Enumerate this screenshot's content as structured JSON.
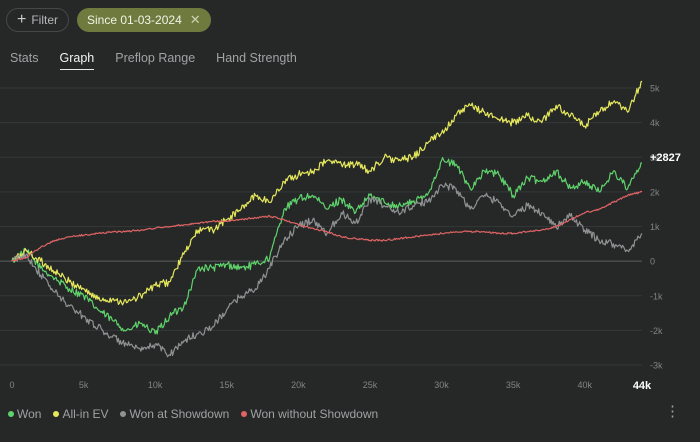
{
  "toolbar": {
    "filter_label": "Filter",
    "date_chip_label": "Since 01-03-2024"
  },
  "tabs": [
    {
      "label": "Stats",
      "active": false
    },
    {
      "label": "Graph",
      "active": true
    },
    {
      "label": "Preflop Range",
      "active": false
    },
    {
      "label": "Hand Strength",
      "active": false
    }
  ],
  "chart_data": {
    "type": "line",
    "x_range": [
      0,
      44000
    ],
    "y_range": [
      -3000,
      5000
    ],
    "x_ticks": [
      "0",
      "5k",
      "10k",
      "15k",
      "20k",
      "25k",
      "30k",
      "35k",
      "40k"
    ],
    "x_end_label": "44k",
    "y_ticks": [
      "5k",
      "4k",
      "3k",
      "2k",
      "1k",
      "0",
      "-1k",
      "-2k",
      "-3k"
    ],
    "end_value_label": "+2827",
    "series": [
      {
        "name": "Won",
        "color": "#5fd36b",
        "x": [
          0,
          1000,
          2000,
          3000,
          4000,
          5000,
          6000,
          7000,
          8000,
          9000,
          10000,
          11000,
          12000,
          13000,
          14000,
          15000,
          16000,
          17000,
          18000,
          19000,
          20000,
          21000,
          22000,
          23000,
          24000,
          25000,
          26000,
          27000,
          28000,
          29000,
          30000,
          31000,
          32000,
          33000,
          34000,
          35000,
          36000,
          37000,
          38000,
          39000,
          40000,
          41000,
          42000,
          43000,
          44000
        ],
        "y": [
          0,
          300,
          -200,
          -500,
          -800,
          -1000,
          -1400,
          -1700,
          -2000,
          -1800,
          -2100,
          -1600,
          -1300,
          -200,
          -200,
          -100,
          -200,
          -100,
          100,
          1500,
          1800,
          1900,
          1500,
          1800,
          1400,
          1900,
          1700,
          1600,
          1700,
          1900,
          2900,
          2800,
          2100,
          2600,
          2500,
          1900,
          2400,
          2300,
          2600,
          2100,
          2300,
          2000,
          2600,
          2100,
          2827
        ]
      },
      {
        "name": "All-in EV",
        "color": "#e6e85c",
        "x": [
          0,
          1000,
          2000,
          3000,
          4000,
          5000,
          6000,
          7000,
          8000,
          9000,
          10000,
          11000,
          12000,
          13000,
          14000,
          15000,
          16000,
          17000,
          18000,
          19000,
          20000,
          21000,
          22000,
          23000,
          24000,
          25000,
          26000,
          27000,
          28000,
          29000,
          30000,
          31000,
          32000,
          33000,
          34000,
          35000,
          36000,
          37000,
          38000,
          39000,
          40000,
          41000,
          42000,
          43000,
          44000
        ],
        "y": [
          0,
          300,
          0,
          -300,
          -600,
          -800,
          -1100,
          -1100,
          -1200,
          -1000,
          -700,
          -600,
          200,
          900,
          900,
          1200,
          1500,
          1900,
          1700,
          2300,
          2500,
          2600,
          2900,
          2800,
          2800,
          2600,
          3000,
          2900,
          3000,
          3400,
          3700,
          4200,
          4500,
          4300,
          4100,
          4000,
          4200,
          4000,
          4500,
          4200,
          3900,
          4300,
          4600,
          4300,
          5200
        ]
      },
      {
        "name": "Won at Showdown",
        "color": "#8e9292",
        "x": [
          0,
          1000,
          2000,
          3000,
          4000,
          5000,
          6000,
          7000,
          8000,
          9000,
          10000,
          11000,
          12000,
          13000,
          14000,
          15000,
          16000,
          17000,
          18000,
          19000,
          20000,
          21000,
          22000,
          23000,
          24000,
          25000,
          26000,
          27000,
          28000,
          29000,
          30000,
          31000,
          32000,
          33000,
          34000,
          35000,
          36000,
          37000,
          38000,
          39000,
          40000,
          41000,
          42000,
          43000,
          44000
        ],
        "y": [
          0,
          200,
          -400,
          -900,
          -1300,
          -1600,
          -1900,
          -2200,
          -2400,
          -2600,
          -2400,
          -2700,
          -2300,
          -2100,
          -1900,
          -1400,
          -1000,
          -800,
          -200,
          600,
          1000,
          1200,
          800,
          1400,
          1100,
          1800,
          1600,
          1400,
          1600,
          1700,
          2200,
          2100,
          1500,
          1900,
          1700,
          1300,
          1600,
          1400,
          1000,
          1300,
          900,
          600,
          500,
          300,
          800
        ]
      },
      {
        "name": "Won without Showdown",
        "color": "#e06464",
        "x": [
          0,
          1000,
          2000,
          3000,
          4000,
          5000,
          6000,
          7000,
          8000,
          9000,
          10000,
          11000,
          12000,
          13000,
          14000,
          15000,
          16000,
          17000,
          18000,
          19000,
          20000,
          21000,
          22000,
          23000,
          24000,
          25000,
          26000,
          27000,
          28000,
          29000,
          30000,
          31000,
          32000,
          33000,
          34000,
          35000,
          36000,
          37000,
          38000,
          39000,
          40000,
          41000,
          42000,
          43000,
          44000
        ],
        "y": [
          0,
          100,
          400,
          600,
          700,
          750,
          800,
          850,
          850,
          900,
          950,
          1000,
          1050,
          1100,
          1150,
          1150,
          1200,
          1250,
          1300,
          1200,
          1050,
          950,
          850,
          700,
          650,
          600,
          600,
          650,
          700,
          750,
          800,
          850,
          850,
          850,
          800,
          800,
          850,
          900,
          1000,
          1200,
          1400,
          1500,
          1700,
          1900,
          2000
        ]
      }
    ]
  }
}
